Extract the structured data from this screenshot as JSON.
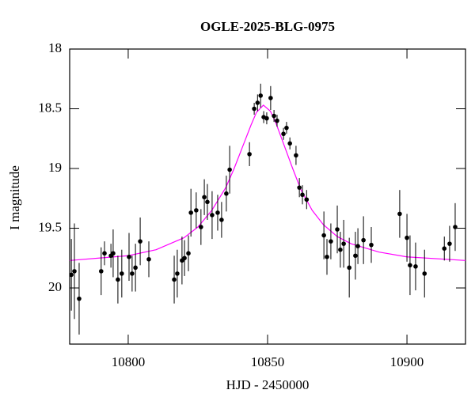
{
  "chart_data": {
    "type": "scatter",
    "title": "OGLE-2025-BLG-0975",
    "x_label": "HJD - 2450000",
    "y_label": "I magnitude",
    "xlim": [
      10779,
      10921
    ],
    "ylim": [
      20.47,
      18
    ],
    "xticks": [
      10800,
      10850,
      10900
    ],
    "yticks": [
      18,
      18.5,
      19,
      19.5,
      20
    ],
    "series": [
      {
        "type": "errorbar",
        "color": "#000000",
        "x": [
          10779.6,
          10780.7,
          10782.4,
          10790.3,
          10791.5,
          10793.8,
          10794.6,
          10796.3,
          10797.7,
          10800.3,
          10801.4,
          10802.6,
          10804.3,
          10807.4,
          10816.5,
          10817.6,
          10819.3,
          10820.2,
          10821.6,
          10822.5,
          10824.4,
          10826.1,
          10827.3,
          10828.4,
          10830.1,
          10832.1,
          10833.5,
          10835.2,
          10836.4,
          10843.5,
          10845.2,
          10846.4,
          10847.5,
          10848.6,
          10849.7,
          10851.1,
          10852.3,
          10853.4,
          10855.7,
          10856.8,
          10858.0,
          10860.2,
          10861.4,
          10862.5,
          10864.0,
          10870.2,
          10871.3,
          10872.7,
          10875.0,
          10876.1,
          10877.3,
          10879.3,
          10881.5,
          10882.4,
          10884.4,
          10887.2,
          10897.4,
          10900.0,
          10901.1,
          10903.1,
          10906.3,
          10913.4,
          10915.3,
          10917.3
        ],
        "values": [
          19.89,
          19.86,
          20.09,
          19.86,
          19.71,
          19.73,
          19.71,
          19.93,
          19.88,
          19.74,
          19.88,
          19.83,
          19.61,
          19.76,
          19.93,
          19.88,
          19.77,
          19.75,
          19.71,
          19.37,
          19.35,
          19.49,
          19.24,
          19.28,
          19.39,
          19.37,
          19.43,
          19.21,
          19.01,
          18.88,
          18.5,
          18.45,
          18.39,
          18.57,
          18.58,
          18.41,
          18.56,
          18.6,
          18.71,
          18.66,
          18.79,
          18.89,
          19.16,
          19.22,
          19.26,
          19.56,
          19.74,
          19.61,
          19.51,
          19.68,
          19.63,
          19.83,
          19.73,
          19.65,
          19.6,
          19.64,
          19.38,
          19.58,
          19.81,
          19.82,
          19.88,
          19.67,
          19.63,
          19.49
        ],
        "errors": [
          0.3,
          0.4,
          0.3,
          0.2,
          0.1,
          0.1,
          0.2,
          0.2,
          0.2,
          0.2,
          0.15,
          0.2,
          0.2,
          0.15,
          0.2,
          0.2,
          0.2,
          0.15,
          0.15,
          0.2,
          0.15,
          0.15,
          0.15,
          0.15,
          0.2,
          0.15,
          0.15,
          0.15,
          0.2,
          0.1,
          0.05,
          0.07,
          0.1,
          0.05,
          0.05,
          0.1,
          0.05,
          0.05,
          0.05,
          0.05,
          0.05,
          0.08,
          0.08,
          0.08,
          0.08,
          0.2,
          0.15,
          0.15,
          0.2,
          0.15,
          0.2,
          0.25,
          0.2,
          0.15,
          0.2,
          0.15,
          0.2,
          0.2,
          0.25,
          0.2,
          0.2,
          0.1,
          0.15,
          0.2
        ]
      },
      {
        "type": "line",
        "color": "#ff00ff",
        "x": [
          10779,
          10800,
          10810,
          10820,
          10825,
          10830,
          10835,
          10838,
          10841,
          10844,
          10846,
          10848.5,
          10851,
          10853,
          10856,
          10859,
          10862,
          10866,
          10870,
          10875,
          10880,
          10890,
          10900,
          10921
        ],
        "values": [
          19.77,
          19.73,
          19.68,
          19.58,
          19.49,
          19.35,
          19.16,
          19.0,
          18.82,
          18.64,
          18.53,
          18.47,
          18.52,
          18.62,
          18.81,
          19.0,
          19.18,
          19.35,
          19.47,
          19.57,
          19.63,
          19.7,
          19.74,
          19.77
        ]
      }
    ]
  }
}
